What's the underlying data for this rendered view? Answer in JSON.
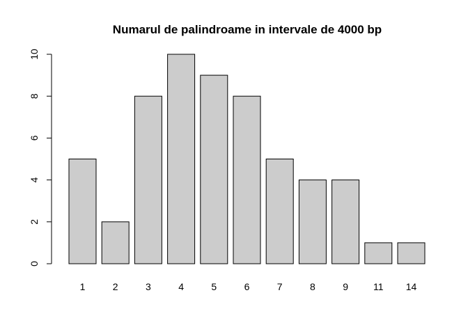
{
  "chart_data": {
    "type": "bar",
    "title": "Numarul de palindroame in intervale de 4000 bp",
    "xlabel": "",
    "ylabel": "",
    "categories": [
      "1",
      "2",
      "3",
      "4",
      "5",
      "6",
      "7",
      "8",
      "9",
      "11",
      "14"
    ],
    "values": [
      5,
      2,
      8,
      10,
      9,
      8,
      5,
      4,
      4,
      1,
      1
    ],
    "ylim": [
      0,
      10
    ],
    "yticks": [
      "0",
      "2",
      "4",
      "6",
      "8",
      "10"
    ],
    "grid": false,
    "legend": "none",
    "colors": {
      "bar_fill": "#cccccc",
      "bar_stroke": "#000000",
      "axis": "#000000",
      "text": "#000000"
    }
  }
}
